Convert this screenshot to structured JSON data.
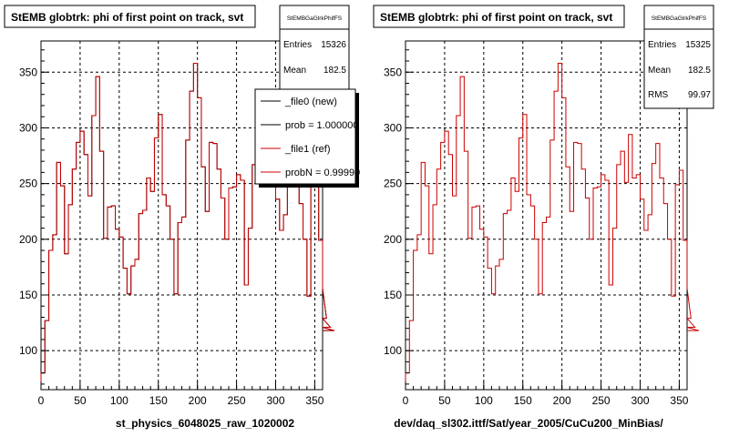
{
  "chart_data": [
    {
      "type": "histogram",
      "title": "StEMB globtrk: phi of first point on track, svt",
      "xlabel": "st_physics_6048025_raw_1020002",
      "xlim": [
        0,
        360
      ],
      "ylim": [
        65,
        378
      ],
      "x_ticks": [
        0,
        50,
        100,
        150,
        200,
        250,
        300,
        350
      ],
      "y_ticks": [
        100,
        150,
        200,
        250,
        300,
        350
      ],
      "grid": true,
      "bin_width": 5,
      "stats": {
        "name": "StEMBGaGlrkPhifFS",
        "entries_label": "Entries",
        "entries": "15326",
        "mean_label": "Mean",
        "mean": "182.5"
      },
      "legend": {
        "placement": "right",
        "entries": [
          "_file0 (new)",
          "prob = 1.000000",
          "_file1 (ref)",
          "probN = 0.99999"
        ],
        "colors": [
          "#000000",
          "#000000",
          "#cc0000",
          "#cc0000"
        ]
      },
      "series": [
        {
          "name": "_file0 (new)",
          "color": "#000000",
          "values": [
            80,
            127,
            190,
            204,
            269,
            248,
            187,
            231,
            263,
            287,
            297,
            276,
            239,
            311,
            346,
            279,
            201,
            229,
            230,
            209,
            202,
            174,
            151,
            176,
            182,
            223,
            226,
            255,
            243,
            291,
            312,
            240,
            230,
            200,
            151,
            215,
            220,
            289,
            333,
            358,
            327,
            265,
            225,
            287,
            286,
            263,
            237,
            200,
            246,
            247,
            258,
            253,
            159,
            210,
            267,
            279,
            251,
            294,
            255,
            258,
            236,
            208,
            222,
            268,
            286,
            255,
            232,
            200,
            149,
            249,
            262,
            199,
            156,
            129,
            121,
            118
          ]
        },
        {
          "name": "_file1 (ref)",
          "color": "#cc0000",
          "values": [
            80,
            127,
            190,
            204,
            269,
            248,
            187,
            231,
            263,
            287,
            297,
            276,
            239,
            311,
            346,
            279,
            201,
            229,
            230,
            209,
            202,
            174,
            151,
            176,
            182,
            223,
            226,
            255,
            243,
            291,
            312,
            240,
            230,
            200,
            151,
            215,
            220,
            289,
            333,
            358,
            327,
            265,
            225,
            287,
            286,
            263,
            237,
            200,
            246,
            247,
            258,
            253,
            159,
            210,
            267,
            279,
            251,
            294,
            255,
            258,
            236,
            208,
            222,
            268,
            286,
            255,
            232,
            200,
            149,
            249,
            262,
            199,
            156,
            129,
            121,
            118
          ]
        }
      ]
    },
    {
      "type": "histogram",
      "title": "StEMB globtrk: phi of first point on track, svt",
      "xlabel": "dev/daq_sl302.ittf/Sat/year_2005/CuCu200_MinBias/",
      "xlim": [
        0,
        360
      ],
      "ylim": [
        65,
        378
      ],
      "x_ticks": [
        0,
        50,
        100,
        150,
        200,
        250,
        300,
        350
      ],
      "y_ticks": [
        100,
        150,
        200,
        250,
        300,
        350
      ],
      "grid": true,
      "bin_width": 5,
      "stats": {
        "name": "StEMBGaGlrkPhifFS",
        "entries_label": "Entries",
        "entries": "15325",
        "mean_label": "Mean",
        "mean": "182.5",
        "rms_label": "RMS",
        "rms": "99.97"
      },
      "series": [
        {
          "name": "",
          "color": "#cc0000",
          "values": [
            80,
            127,
            190,
            204,
            269,
            248,
            187,
            231,
            263,
            287,
            297,
            276,
            239,
            311,
            346,
            279,
            201,
            229,
            230,
            209,
            202,
            174,
            151,
            176,
            182,
            223,
            226,
            255,
            243,
            291,
            312,
            240,
            230,
            200,
            151,
            215,
            220,
            289,
            333,
            358,
            327,
            265,
            225,
            287,
            286,
            263,
            237,
            200,
            246,
            247,
            258,
            253,
            159,
            210,
            267,
            279,
            251,
            294,
            255,
            258,
            236,
            208,
            222,
            268,
            286,
            255,
            232,
            200,
            149,
            249,
            262,
            199,
            156,
            129,
            121,
            118
          ]
        }
      ]
    }
  ]
}
